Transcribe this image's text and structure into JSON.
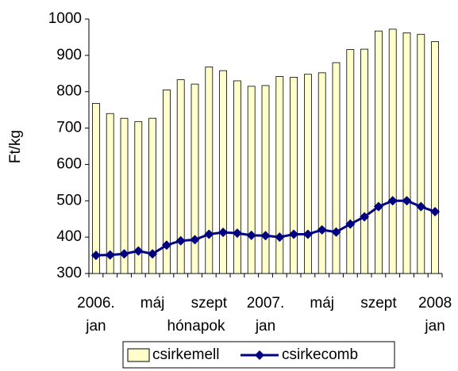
{
  "chart_data": {
    "type": "bar_line",
    "y_label": "Ft/kg",
    "x_label": "hónapok",
    "categories": [
      "2006.\njan",
      null,
      null,
      null,
      "máj",
      null,
      null,
      null,
      "szept",
      null,
      null,
      null,
      "2007.\njan",
      null,
      null,
      null,
      "máj",
      null,
      null,
      null,
      "szept",
      null,
      null,
      null,
      "2008\njan"
    ],
    "series": [
      {
        "name": "csirkemell",
        "type": "bar",
        "color": "#ffffcc",
        "values": [
          768,
          740,
          727,
          718,
          727,
          805,
          833,
          821,
          868,
          858,
          830,
          815,
          817,
          842,
          840,
          848,
          852,
          880,
          916,
          917,
          967,
          972,
          962,
          958,
          938
        ]
      },
      {
        "name": "csirkecomb",
        "type": "line",
        "color": "#000080",
        "values": [
          350,
          351,
          354,
          362,
          354,
          378,
          390,
          393,
          408,
          413,
          411,
          405,
          404,
          400,
          408,
          408,
          420,
          414,
          436,
          456,
          484,
          500,
          500,
          484,
          470
        ]
      }
    ],
    "ylim": [
      300,
      1000
    ],
    "yticks": [
      300,
      400,
      500,
      600,
      700,
      800,
      900,
      1000
    ]
  }
}
